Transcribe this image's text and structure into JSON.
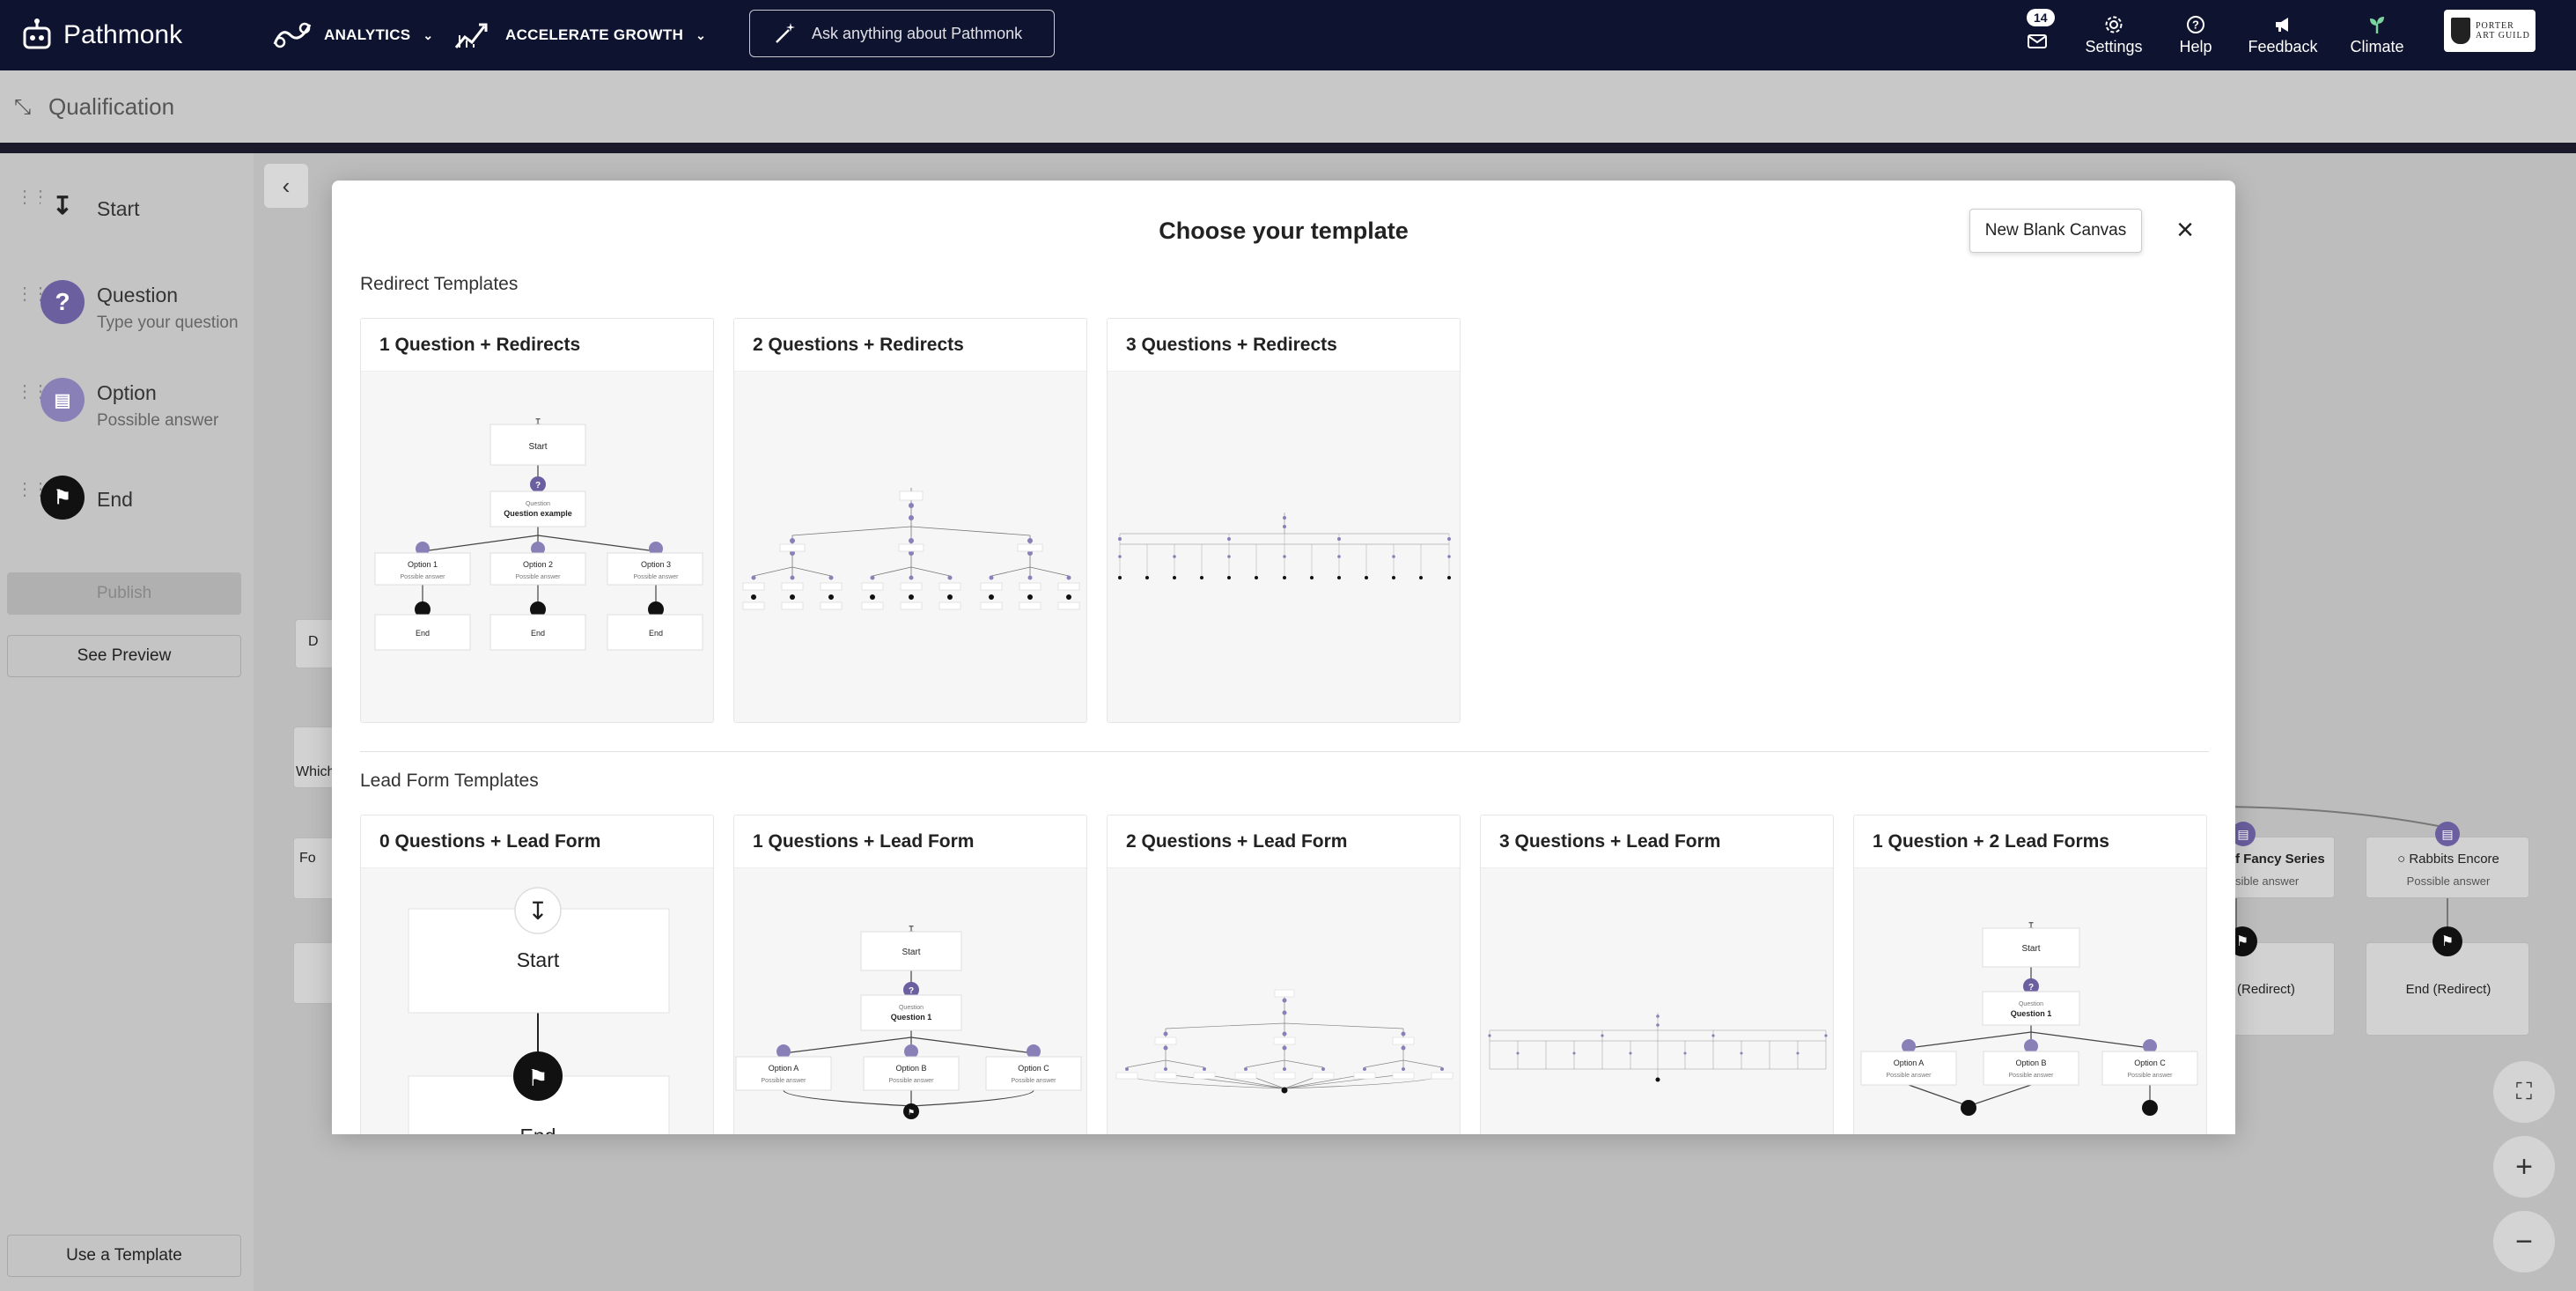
{
  "topnav": {
    "app_name": "Pathmonk",
    "analytics_label": "ANALYTICS",
    "accelerate_label": "ACCELERATE GROWTH",
    "ask_placeholder": "Ask anything about Pathmonk",
    "inbox_count": "14",
    "settings_label": "Settings",
    "help_label": "Help",
    "feedback_label": "Feedback",
    "climate_label": "Climate",
    "brand_line1": "PORTER",
    "brand_line2": "ART GUILD"
  },
  "subheader": {
    "title": "Qualification"
  },
  "sidebar": {
    "nodes": [
      {
        "label": "Start",
        "sub": ""
      },
      {
        "label": "Question",
        "sub": "Type your question"
      },
      {
        "label": "Option",
        "sub": "Possible answer"
      },
      {
        "label": "End",
        "sub": ""
      }
    ],
    "publish_label": "Publish",
    "preview_label": "See Preview",
    "template_label": "Use a Template"
  },
  "canvas_bg": {
    "card_a": "D",
    "card_b": "Which",
    "card_c": "Fo",
    "card_d_title": "f Fancy Series",
    "card_d_sub": "sible answer",
    "card_e_title": "Rabbits Encore",
    "card_e_sub": "Possible answer",
    "end_d": "(Redirect)",
    "end_e": "End (Redirect)"
  },
  "modal": {
    "title": "Choose your template",
    "new_blank_label": "New Blank Canvas",
    "redirect_section": "Redirect Templates",
    "leadform_section": "Lead Form Templates",
    "redirect_templates": [
      {
        "title": "1 Question + Redirects"
      },
      {
        "title": "2 Questions + Redirects"
      },
      {
        "title": "3 Questions + Redirects"
      }
    ],
    "leadform_templates": [
      {
        "title": "0 Questions + Lead Form"
      },
      {
        "title": "1 Questions + Lead Form"
      },
      {
        "title": "2 Questions + Lead Form"
      },
      {
        "title": "3 Questions + Lead Form"
      },
      {
        "title": "1 Question + 2 Lead Forms"
      }
    ],
    "preview_1q": {
      "start": "Start",
      "question_caption": "Question",
      "question_text": "Question example",
      "options": [
        "Option 1",
        "Option 2",
        "Option 3"
      ],
      "option_sub": "Possible answer",
      "end": "End"
    },
    "preview_0q_lead": {
      "start": "Start",
      "end": "End"
    },
    "preview_1q_lead": {
      "start": "Start",
      "question_caption": "Question",
      "question_text": "Question 1",
      "options": [
        "Option A",
        "Option B",
        "Option C"
      ],
      "option_sub": "Possible answer"
    }
  },
  "colors": {
    "nav_bg": "#0e1330",
    "accent_purple": "#6b5fa0",
    "end_black": "#111111"
  }
}
